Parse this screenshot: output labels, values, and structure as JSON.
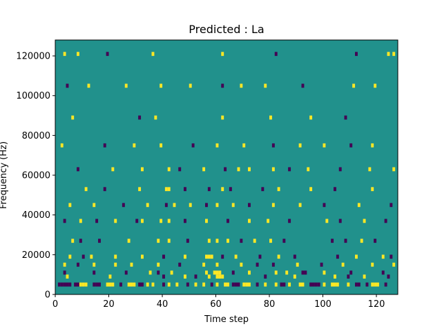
{
  "chart_data": {
    "type": "heatmap",
    "title": "Predicted : La",
    "xlabel": "Time step",
    "ylabel": "Frequency (Hz)",
    "xlim": [
      0,
      128
    ],
    "ylim": [
      0,
      128000
    ],
    "x_ticks": [
      0,
      20,
      40,
      60,
      80,
      100,
      120
    ],
    "y_ticks": [
      0,
      20000,
      40000,
      60000,
      80000,
      100000,
      120000
    ],
    "x_tick_labels": [
      "0",
      "20",
      "40",
      "60",
      "80",
      "100",
      "120"
    ],
    "y_tick_labels": [
      "0",
      "20000",
      "40000",
      "60000",
      "80000",
      "100000",
      "120000"
    ],
    "grid": false,
    "levels": [
      -1,
      0,
      1
    ],
    "colors": {
      "-1": "#440154",
      "0": "#21918c",
      "1": "#fde725"
    },
    "cell_height_hz": 2000,
    "cells": [
      [
        1,
        4000,
        -1
      ],
      [
        2,
        4000,
        -1
      ],
      [
        3,
        4000,
        -1
      ],
      [
        4,
        4000,
        -1
      ],
      [
        5,
        4000,
        -1
      ],
      [
        7,
        4000,
        -1
      ],
      [
        8,
        4000,
        -1
      ],
      [
        9,
        4000,
        1
      ],
      [
        10,
        4000,
        1
      ],
      [
        11,
        4000,
        1
      ],
      [
        14,
        4000,
        -1
      ],
      [
        15,
        4000,
        -1
      ],
      [
        16,
        4000,
        -1
      ],
      [
        19,
        4000,
        1
      ],
      [
        20,
        4000,
        1
      ],
      [
        21,
        4000,
        1
      ],
      [
        24,
        4000,
        -1
      ],
      [
        27,
        4000,
        1
      ],
      [
        28,
        4000,
        1
      ],
      [
        29,
        4000,
        1
      ],
      [
        31,
        4000,
        -1
      ],
      [
        32,
        4000,
        -1
      ],
      [
        34,
        4000,
        1
      ],
      [
        36,
        4000,
        1
      ],
      [
        40,
        4000,
        -1
      ],
      [
        42,
        4000,
        1
      ],
      [
        45,
        4000,
        1
      ],
      [
        49,
        4000,
        -1
      ],
      [
        52,
        4000,
        1
      ],
      [
        55,
        4000,
        1
      ],
      [
        58,
        4000,
        -1
      ],
      [
        60,
        4000,
        1
      ],
      [
        63,
        4000,
        1
      ],
      [
        64,
        4000,
        1
      ],
      [
        66,
        4000,
        -1
      ],
      [
        67,
        4000,
        -1
      ],
      [
        68,
        4000,
        -1
      ],
      [
        70,
        4000,
        1
      ],
      [
        71,
        4000,
        1
      ],
      [
        72,
        4000,
        1
      ],
      [
        75,
        4000,
        -1
      ],
      [
        78,
        4000,
        1
      ],
      [
        82,
        4000,
        1
      ],
      [
        84,
        4000,
        -1
      ],
      [
        85,
        4000,
        -1
      ],
      [
        87,
        4000,
        1
      ],
      [
        91,
        4000,
        1
      ],
      [
        92,
        4000,
        1
      ],
      [
        95,
        4000,
        -1
      ],
      [
        96,
        4000,
        -1
      ],
      [
        97,
        4000,
        -1
      ],
      [
        98,
        4000,
        -1
      ],
      [
        100,
        4000,
        1
      ],
      [
        103,
        4000,
        1
      ],
      [
        104,
        4000,
        1
      ],
      [
        105,
        4000,
        1
      ],
      [
        109,
        4000,
        1
      ],
      [
        112,
        4000,
        -1
      ],
      [
        113,
        4000,
        -1
      ],
      [
        116,
        4000,
        -1
      ],
      [
        118,
        4000,
        1
      ],
      [
        119,
        4000,
        1
      ],
      [
        120,
        4000,
        1
      ],
      [
        123,
        4000,
        -1
      ],
      [
        4,
        8000,
        1
      ],
      [
        20,
        8000,
        1
      ],
      [
        40,
        8000,
        -1
      ],
      [
        48,
        8000,
        1
      ],
      [
        52,
        8000,
        -1
      ],
      [
        57,
        8000,
        1
      ],
      [
        60,
        8000,
        1
      ],
      [
        61,
        8000,
        1
      ],
      [
        62,
        8000,
        1
      ],
      [
        78,
        8000,
        -1
      ],
      [
        89,
        8000,
        1
      ],
      [
        104,
        8000,
        1
      ],
      [
        109,
        8000,
        -1
      ],
      [
        115,
        8000,
        1
      ],
      [
        124,
        8000,
        -1
      ],
      [
        3,
        10000,
        -1
      ],
      [
        14,
        10000,
        -1
      ],
      [
        26,
        10000,
        -1
      ],
      [
        35,
        10000,
        1
      ],
      [
        38,
        10000,
        -1
      ],
      [
        43,
        10000,
        1
      ],
      [
        56,
        10000,
        1
      ],
      [
        59,
        10000,
        1
      ],
      [
        60,
        10000,
        1
      ],
      [
        61,
        10000,
        1
      ],
      [
        66,
        10000,
        -1
      ],
      [
        72,
        10000,
        1
      ],
      [
        82,
        10000,
        1
      ],
      [
        86,
        10000,
        1
      ],
      [
        92,
        10000,
        -1
      ],
      [
        93,
        10000,
        -1
      ],
      [
        100,
        10000,
        1
      ],
      [
        110,
        10000,
        -1
      ],
      [
        122,
        10000,
        -1
      ],
      [
        3,
        14000,
        1
      ],
      [
        8,
        14000,
        -1
      ],
      [
        14,
        14000,
        1
      ],
      [
        22,
        14000,
        1
      ],
      [
        28,
        14000,
        1
      ],
      [
        38,
        14000,
        1
      ],
      [
        46,
        14000,
        -1
      ],
      [
        55,
        14000,
        1
      ],
      [
        60,
        14000,
        1
      ],
      [
        69,
        14000,
        1
      ],
      [
        75,
        14000,
        -1
      ],
      [
        81,
        14000,
        -1
      ],
      [
        90,
        14000,
        1
      ],
      [
        99,
        14000,
        -1
      ],
      [
        107,
        14000,
        1
      ],
      [
        118,
        14000,
        1
      ],
      [
        126,
        14000,
        1
      ],
      [
        5,
        18000,
        1
      ],
      [
        10,
        18000,
        -1
      ],
      [
        13,
        18000,
        1
      ],
      [
        22,
        18000,
        1
      ],
      [
        32,
        18000,
        1
      ],
      [
        40,
        18000,
        -1
      ],
      [
        48,
        18000,
        1
      ],
      [
        56,
        18000,
        1
      ],
      [
        57,
        18000,
        1
      ],
      [
        58,
        18000,
        1
      ],
      [
        62,
        18000,
        -1
      ],
      [
        67,
        18000,
        1
      ],
      [
        76,
        18000,
        -1
      ],
      [
        83,
        18000,
        1
      ],
      [
        89,
        18000,
        -1
      ],
      [
        105,
        18000,
        -1
      ],
      [
        112,
        18000,
        1
      ],
      [
        122,
        18000,
        1
      ],
      [
        125,
        18000,
        -1
      ],
      [
        6,
        26000,
        1
      ],
      [
        9,
        26000,
        -1
      ],
      [
        16,
        26000,
        -1
      ],
      [
        27,
        26000,
        1
      ],
      [
        38,
        26000,
        1
      ],
      [
        42,
        26000,
        1
      ],
      [
        49,
        26000,
        -1
      ],
      [
        57,
        26000,
        1
      ],
      [
        60,
        26000,
        1
      ],
      [
        64,
        26000,
        1
      ],
      [
        69,
        26000,
        -1
      ],
      [
        74,
        26000,
        1
      ],
      [
        80,
        26000,
        1
      ],
      [
        85,
        26000,
        -1
      ],
      [
        103,
        26000,
        -1
      ],
      [
        108,
        26000,
        -1
      ],
      [
        114,
        26000,
        1
      ],
      [
        119,
        26000,
        -1
      ],
      [
        3,
        36000,
        -1
      ],
      [
        9,
        36000,
        1
      ],
      [
        15,
        36000,
        -1
      ],
      [
        22,
        36000,
        1
      ],
      [
        30,
        36000,
        -1
      ],
      [
        32,
        36000,
        1
      ],
      [
        39,
        36000,
        1
      ],
      [
        42,
        36000,
        1
      ],
      [
        48,
        36000,
        -1
      ],
      [
        56,
        36000,
        1
      ],
      [
        64,
        36000,
        -1
      ],
      [
        72,
        36000,
        1
      ],
      [
        79,
        36000,
        1
      ],
      [
        87,
        36000,
        -1
      ],
      [
        101,
        36000,
        1
      ],
      [
        106,
        36000,
        -1
      ],
      [
        115,
        36000,
        1
      ],
      [
        123,
        36000,
        -1
      ],
      [
        5,
        44000,
        1
      ],
      [
        14,
        44000,
        1
      ],
      [
        25,
        44000,
        -1
      ],
      [
        34,
        44000,
        1
      ],
      [
        41,
        44000,
        -1
      ],
      [
        44,
        44000,
        1
      ],
      [
        50,
        44000,
        1
      ],
      [
        56,
        44000,
        -1
      ],
      [
        60,
        44000,
        1
      ],
      [
        66,
        44000,
        1
      ],
      [
        72,
        44000,
        -1
      ],
      [
        81,
        44000,
        1
      ],
      [
        91,
        44000,
        1
      ],
      [
        100,
        44000,
        -1
      ],
      [
        113,
        44000,
        1
      ],
      [
        125,
        44000,
        -1
      ],
      [
        11,
        52000,
        1
      ],
      [
        18,
        52000,
        -1
      ],
      [
        31,
        52000,
        1
      ],
      [
        41,
        52000,
        1
      ],
      [
        42,
        52000,
        1
      ],
      [
        48,
        52000,
        -1
      ],
      [
        57,
        52000,
        -1
      ],
      [
        62,
        52000,
        1
      ],
      [
        65,
        52000,
        -1
      ],
      [
        77,
        52000,
        -1
      ],
      [
        83,
        52000,
        1
      ],
      [
        95,
        52000,
        1
      ],
      [
        104,
        52000,
        -1
      ],
      [
        118,
        52000,
        1
      ],
      [
        8,
        62000,
        -1
      ],
      [
        21,
        62000,
        1
      ],
      [
        32,
        62000,
        1
      ],
      [
        42,
        62000,
        1
      ],
      [
        46,
        62000,
        -1
      ],
      [
        55,
        62000,
        1
      ],
      [
        63,
        62000,
        -1
      ],
      [
        68,
        62000,
        1
      ],
      [
        72,
        62000,
        1
      ],
      [
        81,
        62000,
        1
      ],
      [
        87,
        62000,
        -1
      ],
      [
        94,
        62000,
        1
      ],
      [
        106,
        62000,
        -1
      ],
      [
        117,
        62000,
        1
      ],
      [
        126,
        62000,
        1
      ],
      [
        2,
        74000,
        1
      ],
      [
        18,
        74000,
        -1
      ],
      [
        29,
        74000,
        1
      ],
      [
        39,
        74000,
        1
      ],
      [
        51,
        74000,
        -1
      ],
      [
        60,
        74000,
        1
      ],
      [
        70,
        74000,
        1
      ],
      [
        81,
        74000,
        -1
      ],
      [
        91,
        74000,
        1
      ],
      [
        100,
        74000,
        1
      ],
      [
        110,
        74000,
        -1
      ],
      [
        118,
        74000,
        1
      ],
      [
        6,
        88000,
        1
      ],
      [
        31,
        88000,
        -1
      ],
      [
        37,
        88000,
        1
      ],
      [
        62,
        88000,
        1
      ],
      [
        80,
        88000,
        1
      ],
      [
        95,
        88000,
        1
      ],
      [
        108,
        88000,
        -1
      ],
      [
        4,
        104000,
        -1
      ],
      [
        12,
        104000,
        1
      ],
      [
        26,
        104000,
        1
      ],
      [
        39,
        104000,
        1
      ],
      [
        50,
        104000,
        1
      ],
      [
        62,
        104000,
        -1
      ],
      [
        69,
        104000,
        1
      ],
      [
        78,
        104000,
        1
      ],
      [
        92,
        104000,
        -1
      ],
      [
        111,
        104000,
        1
      ],
      [
        119,
        104000,
        1
      ],
      [
        3,
        120000,
        1
      ],
      [
        8,
        120000,
        1
      ],
      [
        19,
        120000,
        -1
      ],
      [
        36,
        120000,
        1
      ],
      [
        62,
        120000,
        1
      ],
      [
        82,
        120000,
        -1
      ],
      [
        112,
        120000,
        -1
      ],
      [
        124,
        120000,
        1
      ],
      [
        126,
        120000,
        1
      ]
    ]
  }
}
